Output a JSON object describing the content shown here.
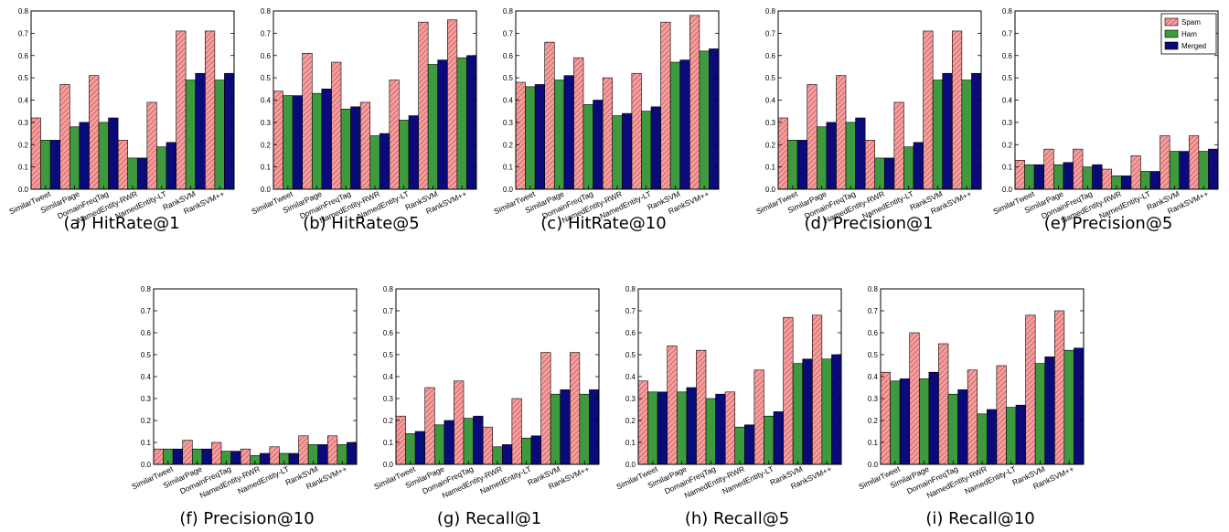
{
  "colors": {
    "spam": "#f4a0a0",
    "spam_hatch": "#c84a4a",
    "ham": "#3e9a3e",
    "merged": "#0a0a7a",
    "axis": "#000000"
  },
  "categories": [
    "SimilarTweet",
    "SimilarPage",
    "DomainFreqTag",
    "NamedEntity-RWR",
    "NamedEntity-LT",
    "RankSVM",
    "RankSVM++"
  ],
  "series_names": [
    "Spam",
    "Ham",
    "Merged"
  ],
  "yticks": [
    "0.0",
    "0.1",
    "0.2",
    "0.3",
    "0.4",
    "0.5",
    "0.6",
    "0.7",
    "0.8"
  ],
  "chart_data": [
    {
      "type": "bar",
      "caption": "(a) HitRate@1",
      "ylim": [
        0,
        0.8
      ],
      "legend": false,
      "series": [
        {
          "values": [
            0.32,
            0.47,
            0.51,
            0.22,
            0.39,
            0.71,
            0.71
          ]
        },
        {
          "values": [
            0.22,
            0.28,
            0.3,
            0.14,
            0.19,
            0.49,
            0.49
          ]
        },
        {
          "values": [
            0.22,
            0.3,
            0.32,
            0.14,
            0.21,
            0.52,
            0.52
          ]
        }
      ]
    },
    {
      "type": "bar",
      "caption": "(b) HitRate@5",
      "ylim": [
        0,
        0.8
      ],
      "legend": false,
      "series": [
        {
          "values": [
            0.44,
            0.61,
            0.57,
            0.39,
            0.49,
            0.75,
            0.76
          ]
        },
        {
          "values": [
            0.42,
            0.43,
            0.36,
            0.24,
            0.31,
            0.56,
            0.59
          ]
        },
        {
          "values": [
            0.42,
            0.45,
            0.37,
            0.25,
            0.33,
            0.58,
            0.6
          ]
        }
      ]
    },
    {
      "type": "bar",
      "caption": "(c) HitRate@10",
      "ylim": [
        0,
        0.8
      ],
      "legend": false,
      "series": [
        {
          "values": [
            0.48,
            0.66,
            0.59,
            0.5,
            0.52,
            0.75,
            0.78
          ]
        },
        {
          "values": [
            0.46,
            0.49,
            0.38,
            0.33,
            0.35,
            0.57,
            0.62
          ]
        },
        {
          "values": [
            0.47,
            0.51,
            0.4,
            0.34,
            0.37,
            0.58,
            0.63
          ]
        }
      ]
    },
    {
      "type": "bar",
      "caption": "(d) Precision@1",
      "ylim": [
        0,
        0.8
      ],
      "legend": false,
      "series": [
        {
          "values": [
            0.32,
            0.47,
            0.51,
            0.22,
            0.39,
            0.71,
            0.71
          ]
        },
        {
          "values": [
            0.22,
            0.28,
            0.3,
            0.14,
            0.19,
            0.49,
            0.49
          ]
        },
        {
          "values": [
            0.22,
            0.3,
            0.32,
            0.14,
            0.21,
            0.52,
            0.52
          ]
        }
      ]
    },
    {
      "type": "bar",
      "caption": "(e) Precision@5",
      "ylim": [
        0,
        0.8
      ],
      "legend": true,
      "legend_position": "top-right",
      "series": [
        {
          "name": "Spam",
          "values": [
            0.13,
            0.18,
            0.18,
            0.09,
            0.15,
            0.24,
            0.24
          ]
        },
        {
          "name": "Ham",
          "values": [
            0.11,
            0.11,
            0.1,
            0.06,
            0.08,
            0.17,
            0.17
          ]
        },
        {
          "name": "Merged",
          "values": [
            0.11,
            0.12,
            0.11,
            0.06,
            0.08,
            0.17,
            0.18
          ]
        }
      ]
    },
    {
      "type": "bar",
      "caption": "(f) Precision@10",
      "ylim": [
        0,
        0.8
      ],
      "legend": false,
      "series": [
        {
          "values": [
            0.07,
            0.11,
            0.1,
            0.07,
            0.08,
            0.13,
            0.13
          ]
        },
        {
          "values": [
            0.07,
            0.07,
            0.06,
            0.04,
            0.05,
            0.09,
            0.09
          ]
        },
        {
          "values": [
            0.07,
            0.07,
            0.06,
            0.05,
            0.05,
            0.09,
            0.1
          ]
        }
      ]
    },
    {
      "type": "bar",
      "caption": "(g) Recall@1",
      "ylim": [
        0,
        0.8
      ],
      "legend": false,
      "series": [
        {
          "values": [
            0.22,
            0.35,
            0.38,
            0.17,
            0.3,
            0.51,
            0.51
          ]
        },
        {
          "values": [
            0.14,
            0.18,
            0.21,
            0.08,
            0.12,
            0.32,
            0.32
          ]
        },
        {
          "values": [
            0.15,
            0.2,
            0.22,
            0.09,
            0.13,
            0.34,
            0.34
          ]
        }
      ]
    },
    {
      "type": "bar",
      "caption": "(h) Recall@5",
      "ylim": [
        0,
        0.8
      ],
      "legend": false,
      "series": [
        {
          "values": [
            0.38,
            0.54,
            0.52,
            0.33,
            0.43,
            0.67,
            0.68
          ]
        },
        {
          "values": [
            0.33,
            0.33,
            0.3,
            0.17,
            0.22,
            0.46,
            0.48
          ]
        },
        {
          "values": [
            0.33,
            0.35,
            0.32,
            0.18,
            0.24,
            0.48,
            0.5
          ]
        }
      ]
    },
    {
      "type": "bar",
      "caption": "(i) Recall@10",
      "ylim": [
        0,
        0.8
      ],
      "legend": false,
      "series": [
        {
          "values": [
            0.42,
            0.6,
            0.55,
            0.43,
            0.45,
            0.68,
            0.7
          ]
        },
        {
          "values": [
            0.38,
            0.39,
            0.32,
            0.23,
            0.26,
            0.46,
            0.52
          ]
        },
        {
          "values": [
            0.39,
            0.42,
            0.34,
            0.25,
            0.27,
            0.49,
            0.53
          ]
        }
      ]
    }
  ]
}
